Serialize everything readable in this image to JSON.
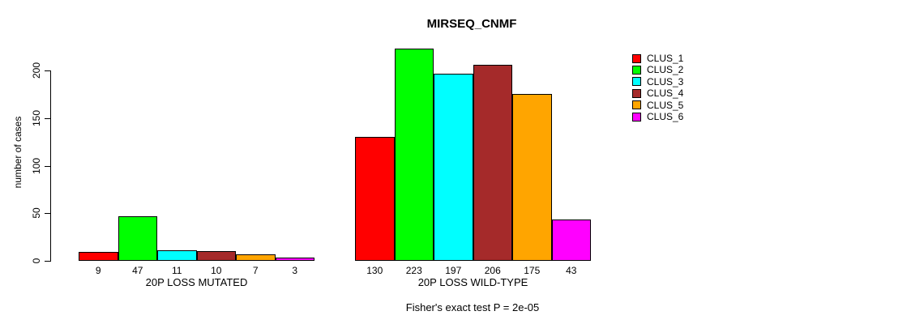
{
  "chart_data": {
    "type": "bar",
    "title": "MIRSEQ_CNMF",
    "ylabel": "number of cases",
    "xlabel": "",
    "yticks": [
      0,
      50,
      100,
      150,
      200
    ],
    "ylim": [
      0,
      200
    ],
    "grid": false,
    "legend_position": "right",
    "categories": [
      "CLUS_1",
      "CLUS_2",
      "CLUS_3",
      "CLUS_4",
      "CLUS_5",
      "CLUS_6"
    ],
    "groups": [
      {
        "label": "20P LOSS MUTATED",
        "values": [
          9,
          47,
          11,
          10,
          7,
          3
        ]
      },
      {
        "label": "20P LOSS WILD-TYPE",
        "values": [
          130,
          223,
          197,
          206,
          175,
          43
        ]
      }
    ],
    "legend": [
      {
        "label": "CLUS_1",
        "color": "#FF0000"
      },
      {
        "label": "CLUS_2",
        "color": "#00FF00"
      },
      {
        "label": "CLUS_3",
        "color": "#00FFFF"
      },
      {
        "label": "CLUS_4",
        "color": "#A52A2A"
      },
      {
        "label": "CLUS_5",
        "color": "#FFA500"
      },
      {
        "label": "CLUS_6",
        "color": "#FF00FF"
      }
    ],
    "caption": "Fisher's exact test P = 2e-05"
  }
}
